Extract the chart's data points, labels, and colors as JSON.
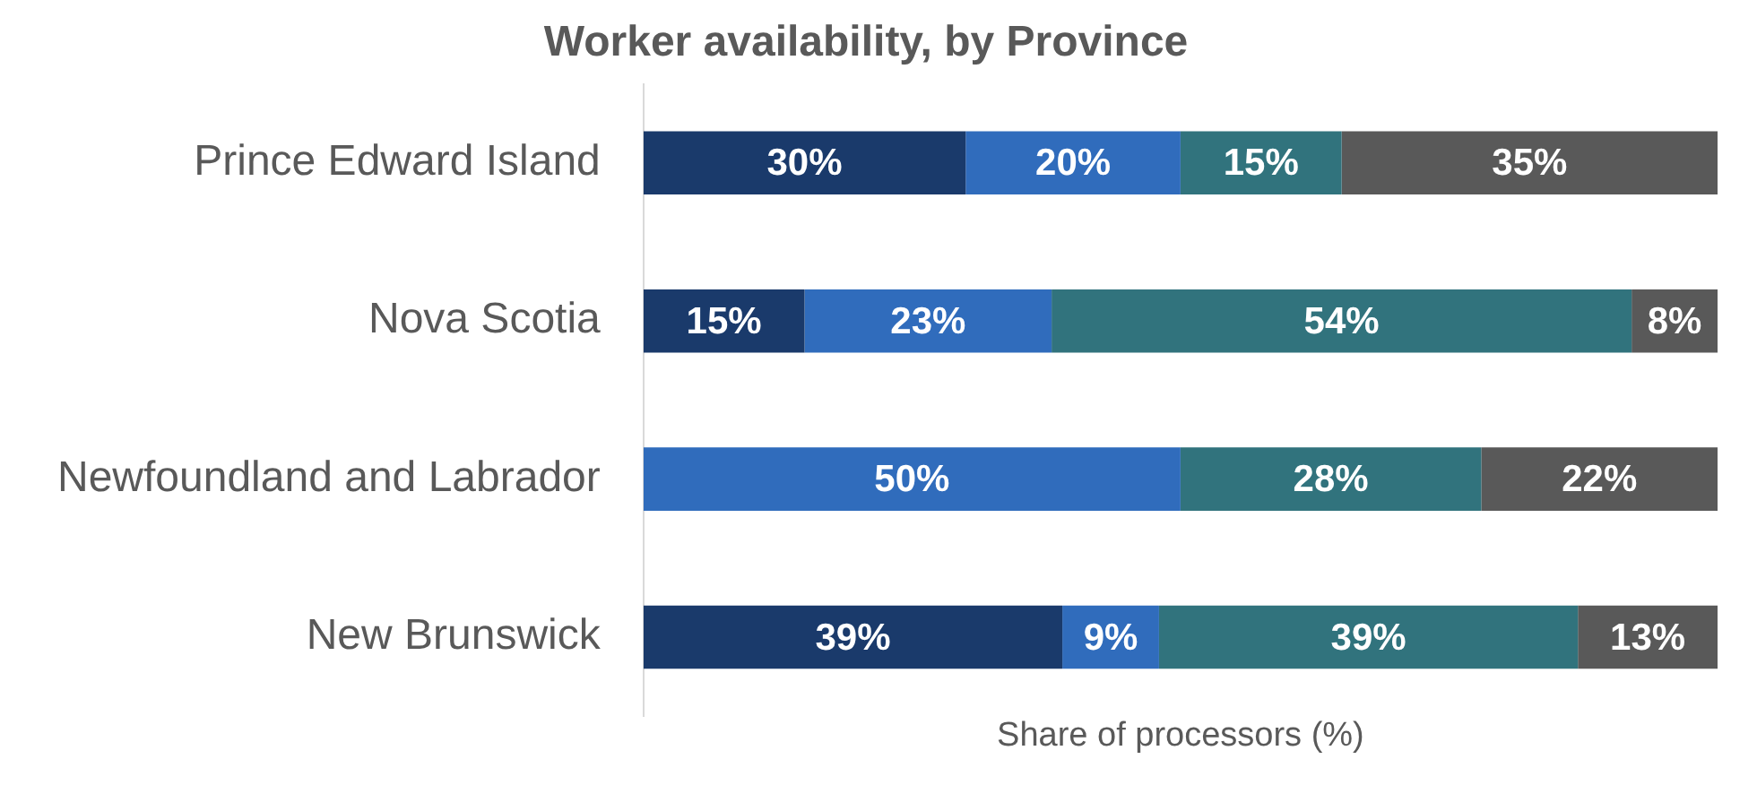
{
  "chart_data": {
    "type": "bar",
    "orientation": "horizontal",
    "stacked": true,
    "title": "Worker availability, by Province",
    "xlabel": "Share of processors (%)",
    "categories": [
      "Prince Edward Island",
      "Nova Scotia",
      "Newfoundland and Labrador",
      "New Brunswick"
    ],
    "xlim": [
      0,
      100
    ],
    "tick_labels": "y",
    "grid": false,
    "legend": false,
    "series": [
      {
        "color": "#1a3a6b",
        "values": [
          30,
          15,
          null,
          39
        ],
        "value_labels": [
          "30%",
          "15%",
          null,
          "39%"
        ]
      },
      {
        "color": "#306cbc",
        "values": [
          20,
          23,
          50,
          9
        ],
        "value_labels": [
          "20%",
          "23%",
          "50%",
          "9%"
        ]
      },
      {
        "color": "#31737d",
        "values": [
          15,
          54,
          28,
          39
        ],
        "value_labels": [
          "15%",
          "54%",
          "28%",
          "39%"
        ]
      },
      {
        "color": "#595959",
        "values": [
          35,
          8,
          22,
          13
        ],
        "value_labels": [
          "35%",
          "8%",
          "22%",
          "13%"
        ]
      }
    ]
  }
}
